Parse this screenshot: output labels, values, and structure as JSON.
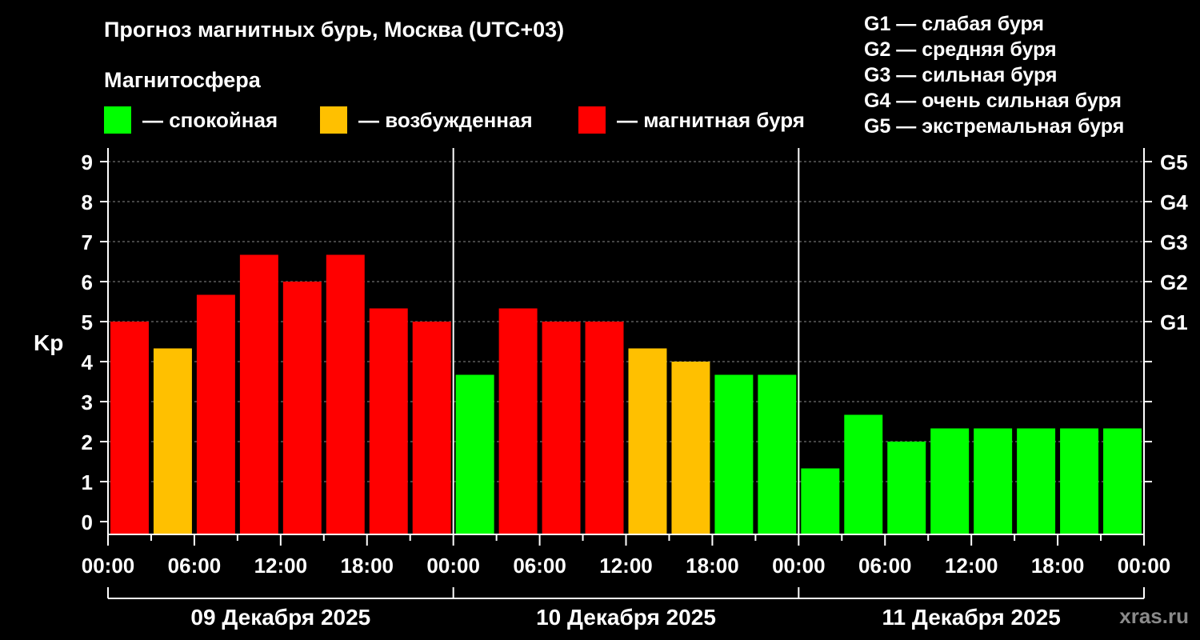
{
  "title": "Прогноз магнитных бурь, Москва (UTC+03)",
  "subtitle": "Магнитосфера",
  "legend": [
    {
      "label": "— спокойная",
      "color": "#00ff00"
    },
    {
      "label": "— возбужденная",
      "color": "#ffc000"
    },
    {
      "label": "— магнитная буря",
      "color": "#ff0000"
    }
  ],
  "storm_scale": [
    "G1 — слабая буря",
    "G2 — средняя буря",
    "G3 — сильная буря",
    "G4 — очень сильная буря",
    "G5 — экстремальная буря"
  ],
  "watermark": "xras.ru",
  "chart_data": {
    "type": "bar",
    "ylabel": "Kp",
    "ylim": [
      0,
      9
    ],
    "yticks": [
      0,
      1,
      2,
      3,
      4,
      5,
      6,
      7,
      8,
      9
    ],
    "right_ticks": [
      {
        "value": 5,
        "label": "G1"
      },
      {
        "value": 6,
        "label": "G2"
      },
      {
        "value": 7,
        "label": "G3"
      },
      {
        "value": 8,
        "label": "G4"
      },
      {
        "value": 9,
        "label": "G5"
      }
    ],
    "grid": true,
    "xtick_labels": [
      "00:00",
      "06:00",
      "12:00",
      "18:00",
      "00:00",
      "06:00",
      "12:00",
      "18:00",
      "00:00",
      "06:00",
      "12:00",
      "18:00",
      "00:00"
    ],
    "days": [
      "09 Декабря 2025",
      "10 Декабря 2025",
      "11 Декабря 2025"
    ],
    "interval_hours": 3,
    "values": [
      5.0,
      4.33,
      5.67,
      6.67,
      6.0,
      6.67,
      5.33,
      5.0,
      3.67,
      5.33,
      5.0,
      5.0,
      4.33,
      4.0,
      3.67,
      3.67,
      1.33,
      2.67,
      2.0,
      2.33,
      2.33,
      2.33,
      2.33,
      2.33
    ],
    "levels": [
      "storm",
      "active",
      "storm",
      "storm",
      "storm",
      "storm",
      "storm",
      "storm",
      "quiet",
      "storm",
      "storm",
      "storm",
      "active",
      "active",
      "quiet",
      "quiet",
      "quiet",
      "quiet",
      "quiet",
      "quiet",
      "quiet",
      "quiet",
      "quiet",
      "quiet"
    ],
    "level_colors": {
      "quiet": "#00ff00",
      "active": "#ffc000",
      "storm": "#ff0000"
    }
  }
}
